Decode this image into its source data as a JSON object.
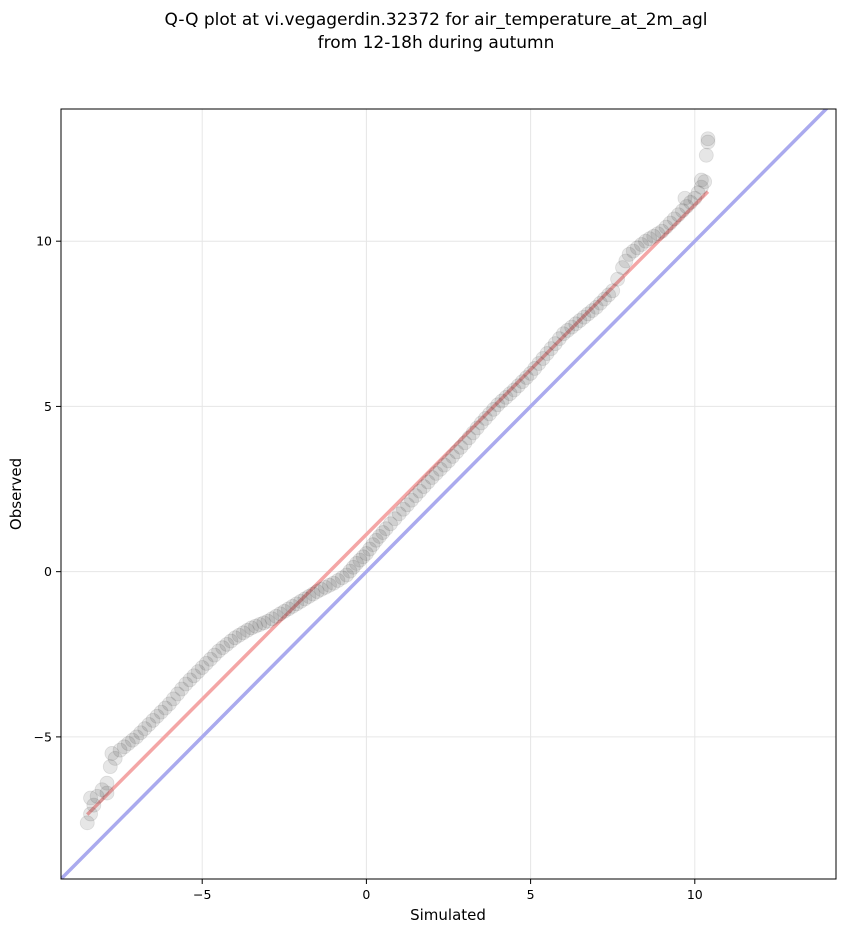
{
  "chart_data": {
    "type": "scatter",
    "title_lines": [
      "Q-Q plot at vi.vegagerdin.32372 for air_temperature_at_2m_agl",
      "from 12-18h during autumn"
    ],
    "xlabel": "Simulated",
    "ylabel": "Observed",
    "xlim": [
      -9.3,
      14.3
    ],
    "ylim": [
      -9.3,
      14.0
    ],
    "xticks": [
      -5,
      0,
      5,
      10
    ],
    "yticks": [
      -5,
      0,
      5,
      10
    ],
    "xtick_labels": [
      "−5",
      "0",
      "5",
      "10"
    ],
    "ytick_labels": [
      "−5",
      "0",
      "5",
      "10"
    ],
    "grid": true,
    "reference_line": {
      "type": "identity",
      "color": "#aaaaee"
    },
    "fit_line": {
      "x": [
        -8.5,
        10.4
      ],
      "y": [
        -7.35,
        11.5
      ],
      "color": "#f4a6a6"
    },
    "quantile_curve": {
      "x": [
        -8.5,
        -8.2,
        -7.9,
        -7.8,
        -7.5,
        -7.0,
        -6.5,
        -6.0,
        -5.5,
        -5.0,
        -4.5,
        -4.0,
        -3.5,
        -3.0,
        -2.5,
        -2.0,
        -1.5,
        -1.0,
        -0.6,
        -0.3,
        0.0,
        0.3,
        0.6,
        1.0,
        1.5,
        2.0,
        2.5,
        3.0,
        3.5,
        4.0,
        4.5,
        5.0,
        5.5,
        6.0,
        6.5,
        7.0,
        7.5,
        7.8,
        8.0,
        8.5,
        9.0,
        9.5,
        10.0,
        10.3,
        10.4
      ],
      "y": [
        -7.6,
        -6.8,
        -6.4,
        -5.9,
        -5.4,
        -5.0,
        -4.5,
        -4.0,
        -3.4,
        -2.9,
        -2.4,
        -2.0,
        -1.7,
        -1.5,
        -1.2,
        -0.9,
        -0.6,
        -0.35,
        -0.1,
        0.25,
        0.55,
        0.95,
        1.3,
        1.75,
        2.3,
        2.85,
        3.35,
        3.9,
        4.5,
        5.05,
        5.5,
        6.0,
        6.6,
        7.2,
        7.6,
        8.0,
        8.5,
        9.2,
        9.6,
        10.0,
        10.3,
        10.8,
        11.3,
        11.8,
        13.0
      ]
    },
    "extra_points": [
      {
        "x": -8.4,
        "y": -6.85
      },
      {
        "x": -7.9,
        "y": -6.7
      },
      {
        "x": -7.75,
        "y": -5.5
      },
      {
        "x": 10.35,
        "y": 12.6
      },
      {
        "x": 10.4,
        "y": 13.1
      },
      {
        "x": 10.2,
        "y": 11.85
      },
      {
        "x": 9.7,
        "y": 11.3
      }
    ],
    "marker_color": "#333333"
  }
}
